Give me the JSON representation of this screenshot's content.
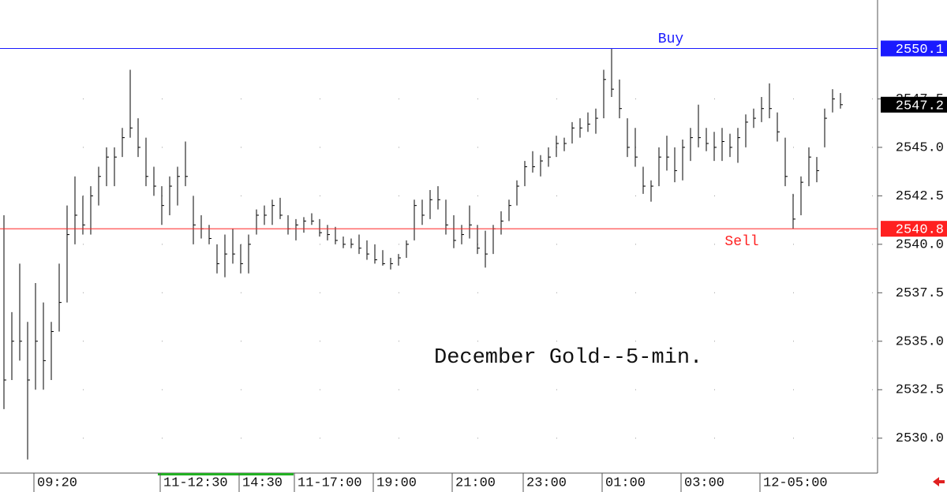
{
  "chart_data": {
    "type": "ohlc",
    "title": "December Gold--5-min.",
    "color": "#000000",
    "grid": true,
    "ylim": [
      2528.2,
      2552.6
    ],
    "yticks": [
      {
        "value": 2530,
        "label": "2530.0"
      },
      2532.5,
      {
        "value": 2535,
        "label": "2535.0"
      },
      2537.5,
      {
        "value": 2540,
        "label": "2540.0"
      },
      2542.5,
      {
        "value": 2545,
        "label": "2545.0"
      },
      2547.5
    ],
    "categories": [
      null,
      null,
      null,
      null,
      "09:20",
      null,
      null,
      null,
      null,
      null,
      null,
      null,
      null,
      null,
      null,
      null,
      null,
      null,
      null,
      null,
      "11-12:30",
      null,
      null,
      null,
      null,
      null,
      null,
      null,
      null,
      null,
      "14:30",
      null,
      null,
      null,
      null,
      null,
      null,
      "11-17:00",
      null,
      null,
      null,
      null,
      null,
      null,
      null,
      null,
      null,
      "19:00",
      null,
      null,
      null,
      null,
      null,
      null,
      null,
      null,
      null,
      "21:00",
      null,
      null,
      null,
      null,
      null,
      null,
      null,
      null,
      "23:00",
      null,
      null,
      null,
      null,
      null,
      null,
      null,
      null,
      null,
      "01:00",
      null,
      null,
      null,
      null,
      null,
      null,
      null,
      null,
      null,
      "03:00",
      null,
      null,
      null,
      null,
      null,
      null,
      null,
      null,
      null,
      "12-05:00",
      null,
      null,
      null,
      null,
      null,
      null,
      null,
      null,
      null,
      null
    ],
    "high": [
      2541.5,
      2536.5,
      2539,
      2536,
      2538,
      2537,
      2536,
      2539,
      2542,
      2543.5,
      2542.5,
      2543,
      2544,
      2545,
      2545,
      2546,
      2549,
      2546.5,
      2545.5,
      2544,
      2543,
      2543.5,
      2544,
      2545.3,
      2542.5,
      2541.5,
      2541,
      2540,
      2540.5,
      2540.8,
      2540,
      2540.5,
      2541.8,
      2542,
      2542.3,
      2542.4,
      2541.5,
      2541.3,
      2541.4,
      2541.6,
      2541.3,
      2541,
      2540.9,
      2540.4,
      2540.3,
      2540.5,
      2540.2,
      2540,
      2539.7,
      2539.3,
      2539.5,
      2540.2,
      2542.3,
      2542.3,
      2542.8,
      2543,
      2542.3,
      2541.5,
      2541,
      2542,
      2541,
      2540.7,
      2541,
      2541.7,
      2542.3,
      2543.3,
      2544.3,
      2544.8,
      2544.6,
      2545,
      2545.6,
      2545.5,
      2546.3,
      2546.5,
      2546.8,
      2547,
      2549,
      2550.1,
      2548.5,
      2546.5,
      2546,
      2544,
      2543.3,
      2545,
      2545.6,
      2545,
      2545.4,
      2546,
      2547.2,
      2546,
      2545.8,
      2546,
      2545.7,
      2546,
      2546.7,
      2547,
      2547.6,
      2548.3,
      2546.8,
      2545.5,
      2542.6,
      2543.5,
      2545,
      2544.5,
      2547,
      2548,
      2547.8
    ],
    "low": [
      2531.5,
      2533,
      2534,
      2528.9,
      2532.5,
      2532.5,
      2533,
      2535.5,
      2537,
      2540,
      2540.5,
      2540.5,
      2542,
      2543,
      2543,
      2544.5,
      2545.5,
      2544.5,
      2543,
      2542.5,
      2541,
      2541.5,
      2542,
      2543,
      2540,
      2540.3,
      2540,
      2538.5,
      2538.3,
      2539,
      2538.5,
      2538.5,
      2540.5,
      2541,
      2541,
      2541.3,
      2540.5,
      2540.2,
      2540.6,
      2541,
      2540.4,
      2540.2,
      2540,
      2539.8,
      2539.8,
      2539.5,
      2539.2,
      2539,
      2538.9,
      2538.7,
      2538.9,
      2539.3,
      2540.2,
      2541,
      2541.3,
      2541.8,
      2540.5,
      2539.8,
      2540,
      2540.3,
      2539.5,
      2538.8,
      2539.5,
      2540.5,
      2541.2,
      2542,
      2543,
      2543.7,
      2543.5,
      2544,
      2544.5,
      2544.8,
      2545.2,
      2545.5,
      2545.8,
      2545.7,
      2546.5,
      2547.6,
      2546.5,
      2544.5,
      2544,
      2542.6,
      2542.2,
      2543,
      2543.8,
      2543.2,
      2543.3,
      2544.3,
      2545,
      2544.8,
      2544.3,
      2544.3,
      2544.5,
      2544.2,
      2545,
      2546,
      2546.3,
      2546.5,
      2545.3,
      2543,
      2540.8,
      2541.5,
      2543,
      2543.2,
      2545,
      2546.8,
      2547
    ],
    "close": [
      2533,
      2535,
      2535,
      2533,
      2535,
      2534,
      2535.5,
      2537,
      2540.5,
      2541.5,
      2541,
      2542.5,
      2543.5,
      2544.5,
      2544.5,
      2545.5,
      2546,
      2545,
      2543.5,
      2543,
      2542,
      2543,
      2543.5,
      2543.5,
      2541,
      2540.8,
      2540.3,
      2539,
      2539.5,
      2539.5,
      2539,
      2540,
      2541.5,
      2541.5,
      2542,
      2541.5,
      2540.8,
      2541,
      2541.2,
      2541.2,
      2540.6,
      2540.5,
      2540.2,
      2540,
      2540,
      2539.8,
      2539.5,
      2539.2,
      2539,
      2539,
      2539.3,
      2540,
      2542,
      2541.5,
      2542.3,
      2542.3,
      2541,
      2540.2,
      2540.5,
      2541,
      2539.8,
      2539.5,
      2540.8,
      2541.2,
      2542,
      2543,
      2544,
      2544,
      2544.3,
      2544.5,
      2545.2,
      2545.2,
      2546,
      2546,
      2546.2,
      2546.5,
      2548.5,
      2548,
      2547,
      2545,
      2544.5,
      2543,
      2543,
      2544.5,
      2544.5,
      2543.8,
      2545,
      2545.5,
      2545.5,
      2545.2,
      2545,
      2545.3,
      2545,
      2545.5,
      2546.3,
      2546.5,
      2547,
      2547,
      2545.8,
      2543.5,
      2541.3,
      2543.2,
      2544.5,
      2543.8,
      2546.5,
      2547.5,
      2547.2
    ],
    "lines": [
      {
        "value": 2550.1,
        "label": "Buy",
        "color": "#1a1aff"
      },
      {
        "value": 2540.8,
        "label": "Sell",
        "color": "#ff2020"
      }
    ],
    "last": 2547.2
  }
}
